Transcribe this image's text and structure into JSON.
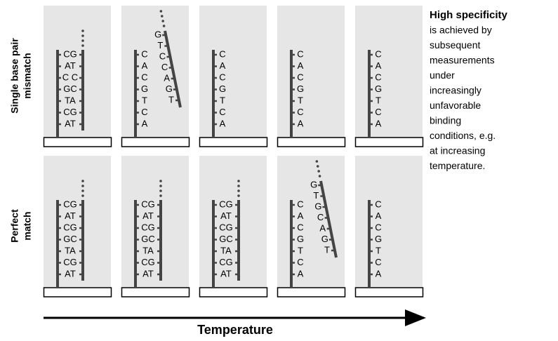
{
  "rows": [
    {
      "label": [
        "Single base pair",
        "mismatch"
      ],
      "panels": [
        {
          "pairs": [
            "CG",
            "AT",
            "C C",
            "GC",
            "TA",
            "CG",
            "AT"
          ]
        },
        {
          "left": [
            "C",
            "A",
            "C",
            "G",
            "T",
            "C",
            "A"
          ],
          "right": [
            "G",
            "T",
            "C",
            "C",
            "A",
            "G",
            "T"
          ]
        },
        {
          "left": [
            "C",
            "A",
            "C",
            "G",
            "T",
            "C",
            "A"
          ]
        },
        {
          "left": [
            "C",
            "A",
            "C",
            "G",
            "T",
            "C",
            "A"
          ]
        },
        {
          "left": [
            "C",
            "A",
            "C",
            "G",
            "T",
            "C",
            "A"
          ]
        }
      ]
    },
    {
      "label": [
        "Perfect",
        "match"
      ],
      "panels": [
        {
          "pairs": [
            "CG",
            "AT",
            "CG",
            "GC",
            "TA",
            "CG",
            "AT"
          ]
        },
        {
          "pairs": [
            "CG",
            "AT",
            "CG",
            "GC",
            "TA",
            "CG",
            "AT"
          ]
        },
        {
          "pairs": [
            "CG",
            "AT",
            "CG",
            "GC",
            "TA",
            "CG",
            "AT"
          ]
        },
        {
          "left": [
            "C",
            "A",
            "C",
            "G",
            "T",
            "C",
            "A"
          ],
          "right": [
            "G",
            "T",
            "G",
            "C",
            "A",
            "G",
            "T"
          ]
        },
        {
          "left": [
            "C",
            "A",
            "C",
            "G",
            "T",
            "C",
            "A"
          ]
        }
      ]
    }
  ],
  "axis_label": "Temperature",
  "note": {
    "title": "High specificity",
    "lines": [
      "is achieved by",
      "subsequent",
      "measurements",
      "under",
      "increasingly",
      "unfavorable",
      "binding",
      "conditions, e.g.",
      "at increasing",
      "temperature."
    ]
  }
}
